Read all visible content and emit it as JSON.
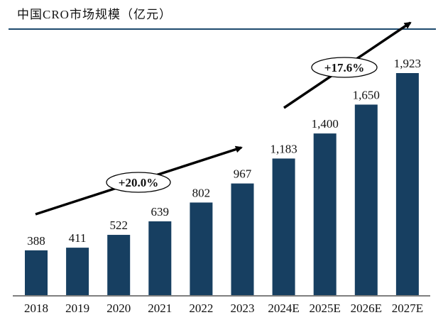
{
  "chart_data": {
    "type": "bar",
    "title": "中国CRO市场规模（亿元）",
    "categories": [
      "2018",
      "2019",
      "2020",
      "2021",
      "2022",
      "2023",
      "2024E",
      "2025E",
      "2026E",
      "2027E"
    ],
    "values": [
      388,
      411,
      522,
      639,
      802,
      967,
      1183,
      1400,
      1650,
      1923
    ],
    "value_labels": [
      "388",
      "411",
      "522",
      "639",
      "802",
      "967",
      "1,183",
      "1,400",
      "1,650",
      "1,923"
    ],
    "xlabel": "",
    "ylabel": "",
    "ylim": [
      0,
      1923
    ],
    "grid": false,
    "bar_color": "#173f61",
    "annotations": [
      {
        "text": "+20.0%",
        "from": "2018",
        "to": "2023"
      },
      {
        "text": "+17.6%",
        "from": "2024E",
        "to": "2027E"
      }
    ]
  }
}
